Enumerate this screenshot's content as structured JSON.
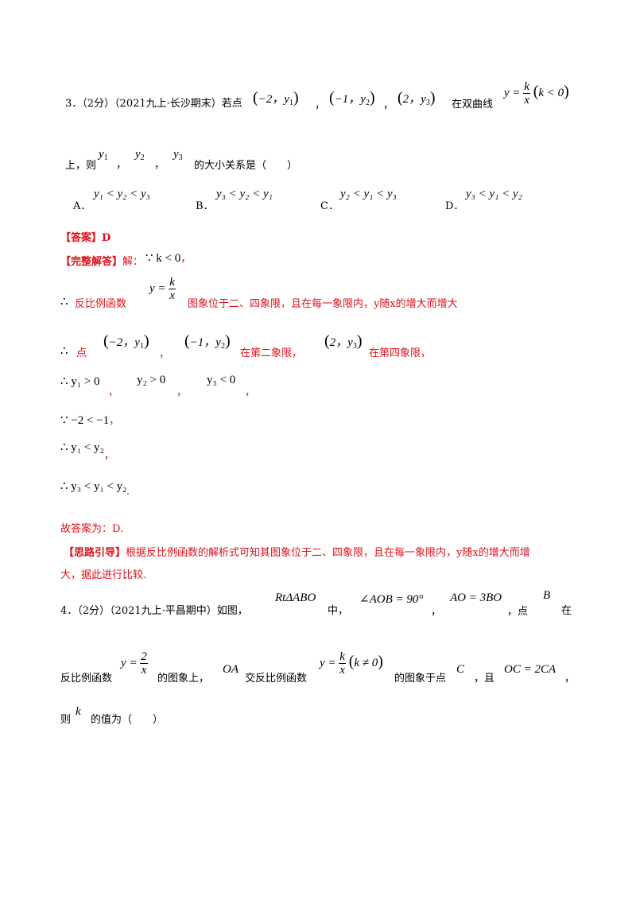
{
  "q3": {
    "header": "3．（2分）（2021九上·长沙期末）若点",
    "pt1": "−2，y",
    "pt2": "−1，y",
    "pt3": "2，y",
    "comma": "，",
    "in_curve": "在双曲线",
    "curve_lhs": "y =",
    "frac_num": "k",
    "frac_den": "x",
    "curve_cond": "k < 0",
    "line2_pre": "上，则",
    "line2_suf": "的大小关系是（　　）",
    "options": [
      {
        "letter": "A．",
        "math": "y₁ < y₂ < y₃"
      },
      {
        "letter": "B．",
        "math": "y₃ < y₂ < y₁"
      },
      {
        "letter": "C．",
        "math": "y₂ < y₁ < y₃"
      },
      {
        "letter": "D．",
        "math": "y₃ < y₁ < y₂"
      }
    ],
    "answer_label": "【答案】",
    "answer_value": "D",
    "solution_label": "【完整解答】",
    "solution_intro": "解：",
    "step1_math": "∵ k < 0",
    "step1_tail": "，",
    "step2_pre": "∴",
    "step2_text": "反比例函数",
    "step2_tail": "图象位于二、四象限，且在每一象限内，y随x的增大而增大",
    "step3_pre": "∴",
    "step3_pt": "点",
    "step3_q2": "在第二象限，",
    "step3_q4": "在第四象限，",
    "step4_a": "∴ y₁ > 0",
    "step4_b": "y₂ > 0",
    "step4_c": "y₃ < 0",
    "step5": "∵ −2 < −1",
    "step6": "∴ y₁ < y₂",
    "step7": "∴ y₃ < y₁ < y₂",
    "period": ".",
    "final": "故答案为：D.",
    "hint_label": "【思路引导】",
    "hint_text1": "根据反比例函数的解析式可知其图象位于二、四象限，且在每一象限内，y随x的增大而增",
    "hint_text2": "大，据此进行比较."
  },
  "q4": {
    "header": "4．（2分）（2021九上·平昌期中）如图，",
    "tri": "RtΔABO",
    "zhong": "中，",
    "angle": "∠AOB = 90°",
    "ratio": "AO = 3BO",
    "point_B_pre": "，点",
    "B": "B",
    "zai": "在",
    "line2_a": "反比例函数",
    "f1_lhs": "y =",
    "f1_num": "2",
    "f1_den": "x",
    "line2_b": "的图象上，",
    "OA": "OA",
    "line2_c": "交反比例函数",
    "f2_lhs": "y =",
    "f2_num": "k",
    "f2_den": "x",
    "f2_cond": "k ≠ 0",
    "line2_d": "的图象于点",
    "C": "C",
    "line2_e": "，且",
    "oc": "OC = 2CA",
    "line2_f": "，",
    "line3_a": "则",
    "k": "k",
    "line3_b": "的值为（　　）"
  }
}
